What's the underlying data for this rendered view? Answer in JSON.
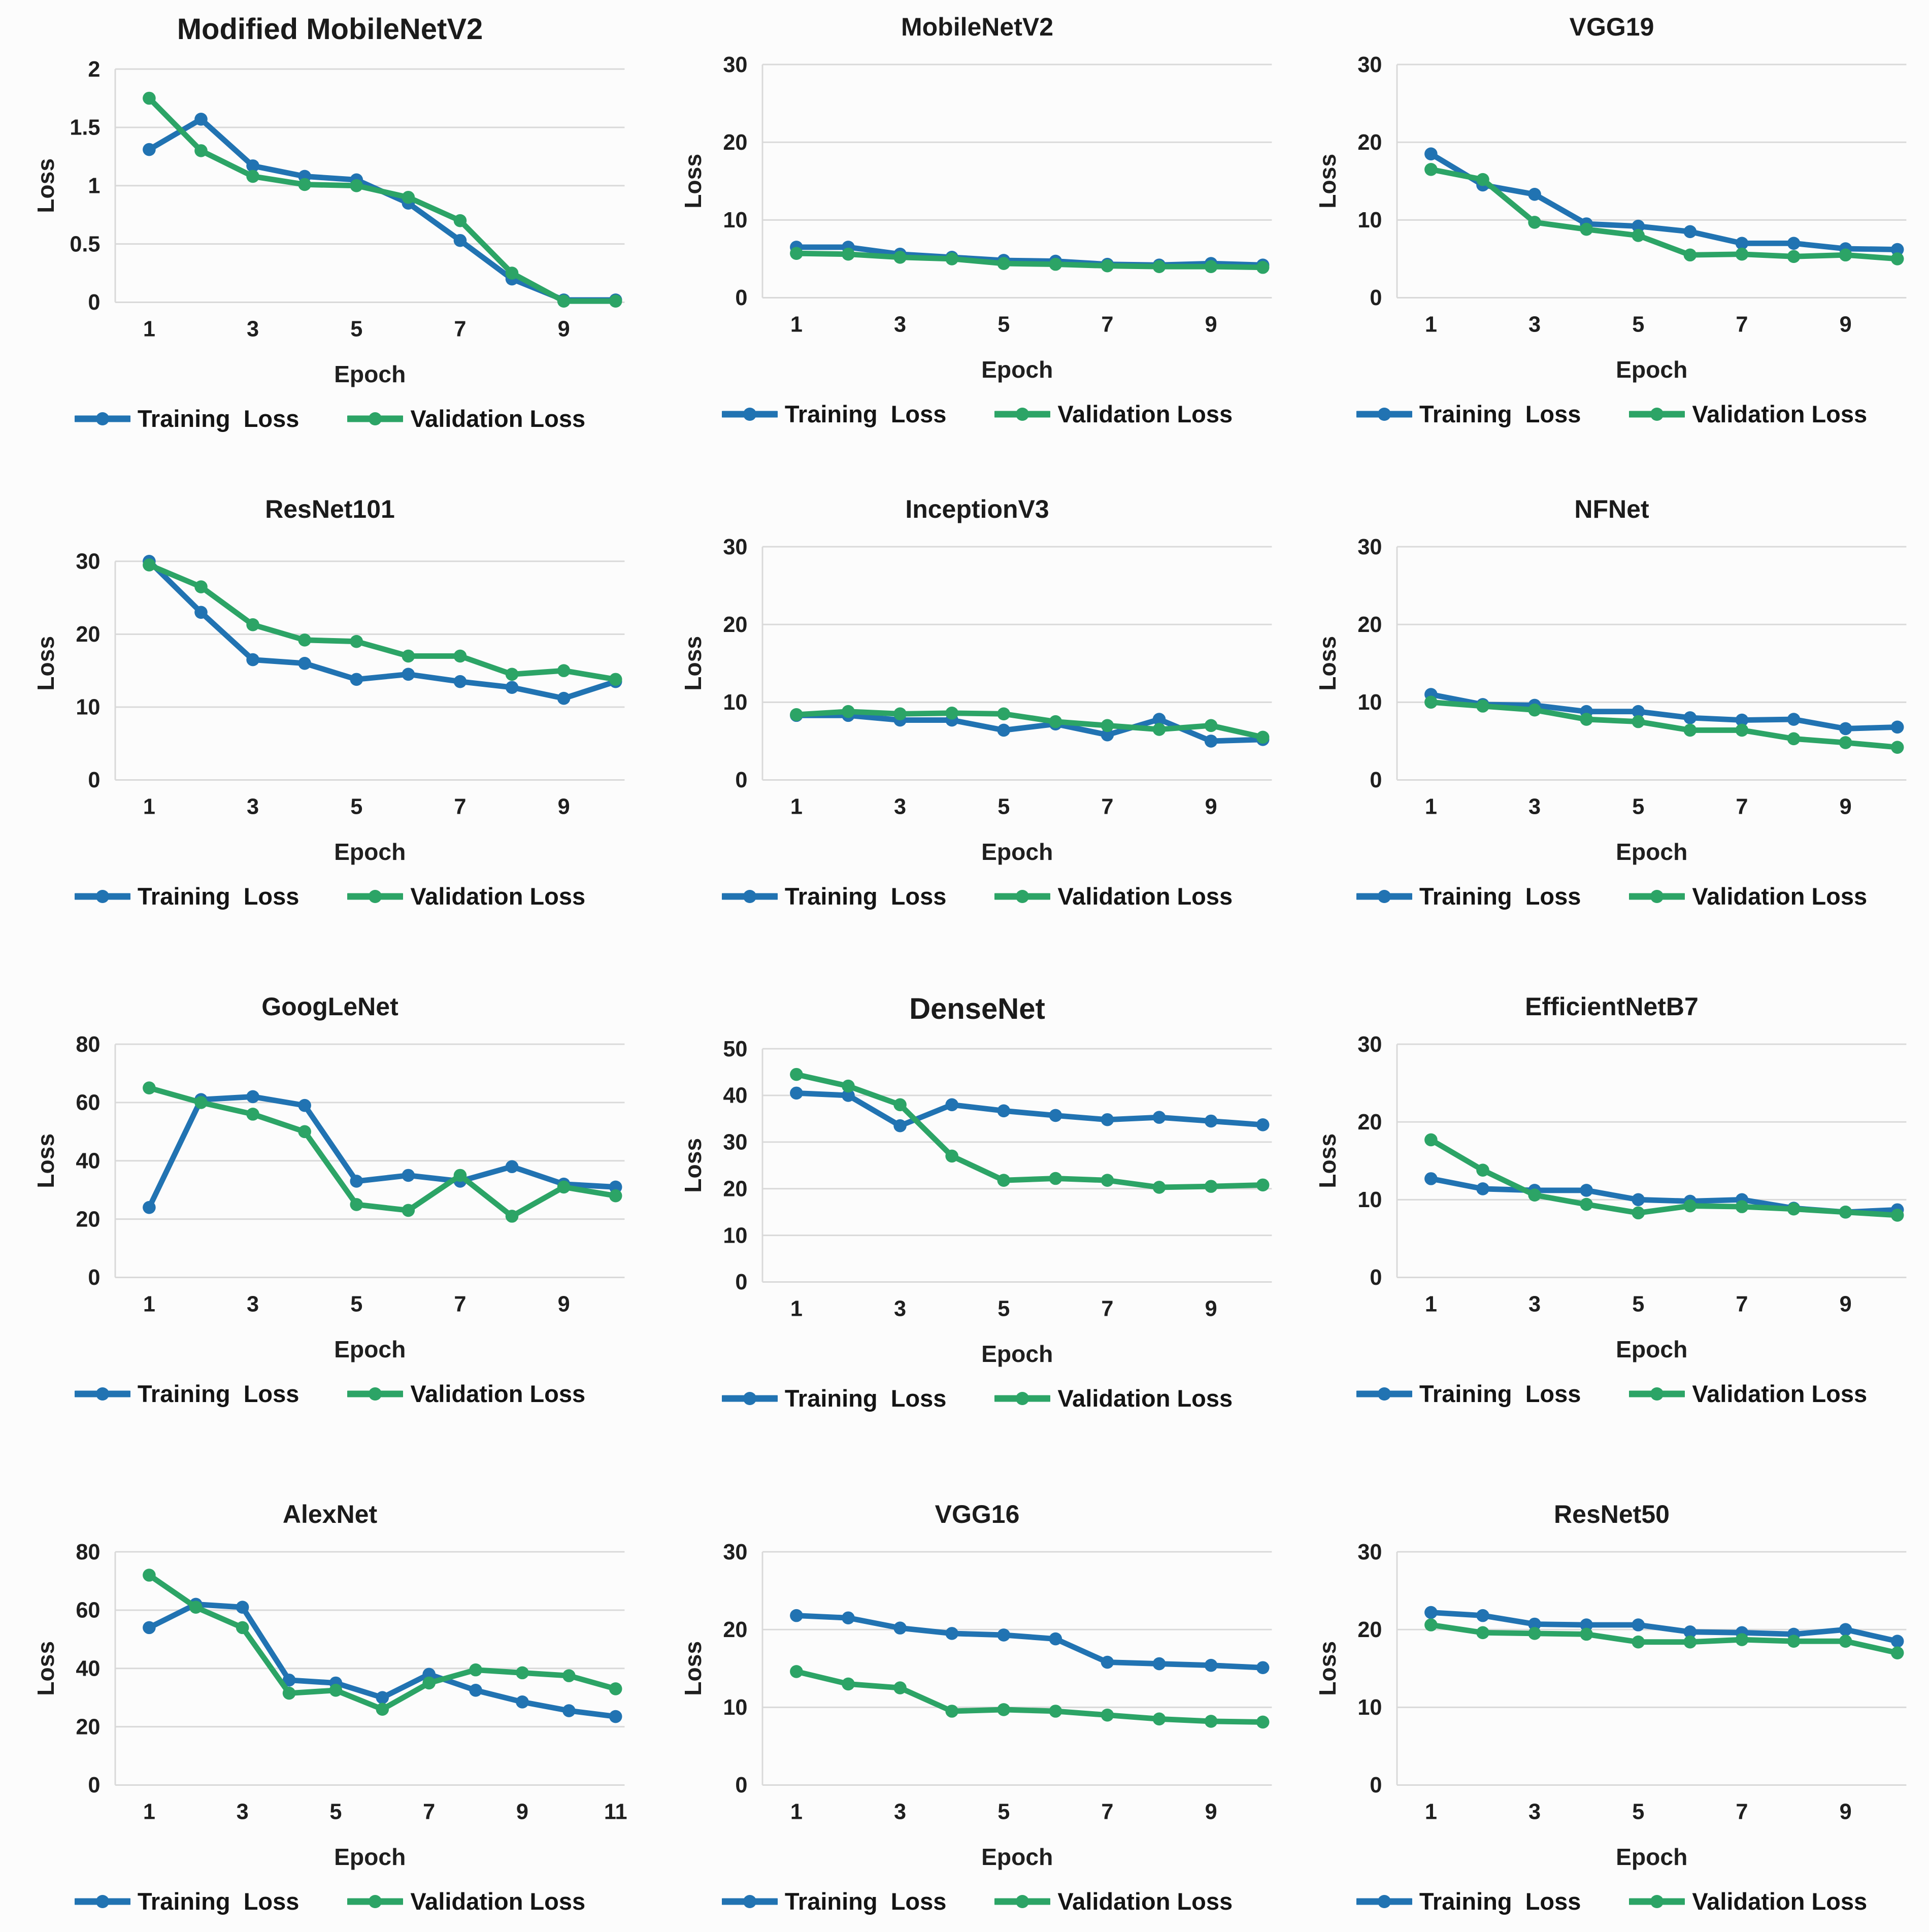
{
  "page": {
    "background": "#fcfcfc"
  },
  "colors": {
    "training": "#2173b2",
    "validation": "#2ca466",
    "grid": "#d9d9d9",
    "text": "#1f1f1f"
  },
  "axis": {
    "x_label": "Epoch",
    "y_label": "Loss"
  },
  "legend": {
    "training_label": "Training  Loss",
    "validation_label": "Validation Loss"
  },
  "chart_data": [
    {
      "type": "line",
      "title": "Modified MobileNetV2",
      "title_emphasis": true,
      "xlabel": "Epoch",
      "ylabel": "Loss",
      "x": [
        1,
        2,
        3,
        4,
        5,
        6,
        7,
        8,
        9,
        10
      ],
      "x_ticks": [
        1,
        3,
        5,
        7,
        9
      ],
      "y_ticks": [
        0,
        0.5,
        1,
        1.5,
        2
      ],
      "ylim": [
        0,
        2
      ],
      "grid": true,
      "legend_position": "bottom",
      "series": [
        {
          "name": "Training  Loss",
          "color_key": "training",
          "values": [
            1.31,
            1.57,
            1.17,
            1.08,
            1.05,
            0.85,
            0.53,
            0.2,
            0.02,
            0.02
          ]
        },
        {
          "name": "Validation Loss",
          "color_key": "validation",
          "values": [
            1.75,
            1.3,
            1.08,
            1.01,
            1.0,
            0.9,
            0.7,
            0.25,
            0.01,
            0.01
          ]
        }
      ]
    },
    {
      "type": "line",
      "title": "MobileNetV2",
      "title_emphasis": false,
      "xlabel": "Epoch",
      "ylabel": "Loss",
      "x": [
        1,
        2,
        3,
        4,
        5,
        6,
        7,
        8,
        9,
        10
      ],
      "x_ticks": [
        1,
        3,
        5,
        7,
        9
      ],
      "y_ticks": [
        0,
        10,
        20,
        30
      ],
      "ylim": [
        0,
        30
      ],
      "grid": true,
      "legend_position": "bottom",
      "series": [
        {
          "name": "Training  Loss",
          "color_key": "training",
          "values": [
            6.5,
            6.5,
            5.6,
            5.2,
            4.8,
            4.7,
            4.3,
            4.2,
            4.4,
            4.2
          ]
        },
        {
          "name": "Validation Loss",
          "color_key": "validation",
          "values": [
            5.7,
            5.6,
            5.2,
            5.0,
            4.4,
            4.3,
            4.1,
            4.0,
            4.0,
            3.9
          ]
        }
      ]
    },
    {
      "type": "line",
      "title": "VGG19",
      "title_emphasis": false,
      "xlabel": "Epoch",
      "ylabel": "Loss",
      "x": [
        1,
        2,
        3,
        4,
        5,
        6,
        7,
        8,
        9,
        10
      ],
      "x_ticks": [
        1,
        3,
        5,
        7,
        9
      ],
      "y_ticks": [
        0,
        10,
        20,
        30
      ],
      "ylim": [
        0,
        30
      ],
      "grid": true,
      "legend_position": "bottom",
      "series": [
        {
          "name": "Training  Loss",
          "color_key": "training",
          "values": [
            18.5,
            14.5,
            13.3,
            9.5,
            9.2,
            8.5,
            7.0,
            7.0,
            6.3,
            6.2
          ]
        },
        {
          "name": "Validation Loss",
          "color_key": "validation",
          "values": [
            16.5,
            15.2,
            9.7,
            8.8,
            8.0,
            5.5,
            5.6,
            5.3,
            5.5,
            5.0
          ]
        }
      ]
    },
    {
      "type": "line",
      "title": "ResNet101",
      "title_emphasis": false,
      "xlabel": "Epoch",
      "ylabel": "Loss",
      "x": [
        1,
        2,
        3,
        4,
        5,
        6,
        7,
        8,
        9,
        10
      ],
      "x_ticks": [
        1,
        3,
        5,
        7,
        9
      ],
      "y_ticks": [
        0,
        10,
        20,
        30
      ],
      "ylim": [
        0,
        32
      ],
      "grid": true,
      "legend_position": "bottom",
      "series": [
        {
          "name": "Training  Loss",
          "color_key": "training",
          "values": [
            30,
            23,
            16.5,
            16,
            13.8,
            14.5,
            13.5,
            12.7,
            11.2,
            13.5
          ]
        },
        {
          "name": "Validation Loss",
          "color_key": "validation",
          "values": [
            29.5,
            26.5,
            21.3,
            19.2,
            19.0,
            17.0,
            17.0,
            14.5,
            15.0,
            13.8
          ]
        }
      ]
    },
    {
      "type": "line",
      "title": "InceptionV3",
      "title_emphasis": false,
      "xlabel": "Epoch",
      "ylabel": "Loss",
      "x": [
        1,
        2,
        3,
        4,
        5,
        6,
        7,
        8,
        9,
        10
      ],
      "x_ticks": [
        1,
        3,
        5,
        7,
        9
      ],
      "y_ticks": [
        0,
        10,
        20,
        30
      ],
      "ylim": [
        0,
        30
      ],
      "grid": true,
      "legend_position": "bottom",
      "series": [
        {
          "name": "Training  Loss",
          "color_key": "training",
          "values": [
            8.3,
            8.3,
            7.7,
            7.7,
            6.4,
            7.2,
            5.8,
            7.8,
            5.0,
            5.2
          ]
        },
        {
          "name": "Validation Loss",
          "color_key": "validation",
          "values": [
            8.4,
            8.8,
            8.5,
            8.6,
            8.5,
            7.5,
            7.0,
            6.5,
            7.0,
            5.5
          ]
        }
      ]
    },
    {
      "type": "line",
      "title": "NFNet",
      "title_emphasis": false,
      "xlabel": "Epoch",
      "ylabel": "Loss",
      "x": [
        1,
        2,
        3,
        4,
        5,
        6,
        7,
        8,
        9,
        10
      ],
      "x_ticks": [
        1,
        3,
        5,
        7,
        9
      ],
      "y_ticks": [
        0,
        10,
        20,
        30
      ],
      "ylim": [
        0,
        30
      ],
      "grid": true,
      "legend_position": "bottom",
      "series": [
        {
          "name": "Training  Loss",
          "color_key": "training",
          "values": [
            11.0,
            9.7,
            9.6,
            8.8,
            8.8,
            8.0,
            7.7,
            7.8,
            6.6,
            6.8
          ]
        },
        {
          "name": "Validation Loss",
          "color_key": "validation",
          "values": [
            10.0,
            9.5,
            9.0,
            7.8,
            7.5,
            6.4,
            6.4,
            5.3,
            4.8,
            4.2
          ]
        }
      ]
    },
    {
      "type": "line",
      "title": "GoogLeNet",
      "title_emphasis": false,
      "xlabel": "Epoch",
      "ylabel": "Loss",
      "x": [
        1,
        2,
        3,
        4,
        5,
        6,
        7,
        8,
        9,
        10
      ],
      "x_ticks": [
        1,
        3,
        5,
        7,
        9
      ],
      "y_ticks": [
        0,
        20,
        40,
        60,
        80
      ],
      "ylim": [
        0,
        80
      ],
      "grid": true,
      "legend_position": "bottom",
      "series": [
        {
          "name": "Training  Loss",
          "color_key": "training",
          "values": [
            24,
            61,
            62,
            59,
            33,
            35,
            33,
            38,
            32,
            31
          ]
        },
        {
          "name": "Validation Loss",
          "color_key": "validation",
          "values": [
            65,
            60,
            56,
            50,
            25,
            23,
            35,
            21,
            31,
            28
          ]
        }
      ]
    },
    {
      "type": "line",
      "title": "DenseNet",
      "title_emphasis": true,
      "xlabel": "Epoch",
      "ylabel": "Loss",
      "x": [
        1,
        2,
        3,
        4,
        5,
        6,
        7,
        8,
        9,
        10
      ],
      "x_ticks": [
        1,
        3,
        5,
        7,
        9
      ],
      "y_ticks": [
        0,
        10,
        20,
        30,
        40,
        50
      ],
      "ylim": [
        0,
        50
      ],
      "grid": true,
      "legend_position": "bottom",
      "series": [
        {
          "name": "Training  Loss",
          "color_key": "training",
          "values": [
            40.5,
            40,
            33.5,
            38,
            36.7,
            35.7,
            34.8,
            35.3,
            34.5,
            33.7
          ]
        },
        {
          "name": "Validation Loss",
          "color_key": "validation",
          "values": [
            44.5,
            42,
            38,
            27,
            21.8,
            22.2,
            21.8,
            20.3,
            20.5,
            20.8
          ]
        }
      ]
    },
    {
      "type": "line",
      "title": "EfficientNetB7",
      "title_emphasis": false,
      "xlabel": "Epoch",
      "ylabel": "Loss",
      "x": [
        1,
        2,
        3,
        4,
        5,
        6,
        7,
        8,
        9,
        10
      ],
      "x_ticks": [
        1,
        3,
        5,
        7,
        9
      ],
      "y_ticks": [
        0,
        10,
        20,
        30
      ],
      "ylim": [
        0,
        30
      ],
      "grid": true,
      "legend_position": "bottom",
      "series": [
        {
          "name": "Training  Loss",
          "color_key": "training",
          "values": [
            12.7,
            11.4,
            11.2,
            11.2,
            10.0,
            9.8,
            10.0,
            8.9,
            8.4,
            8.7
          ]
        },
        {
          "name": "Validation Loss",
          "color_key": "validation",
          "values": [
            17.7,
            13.8,
            10.6,
            9.4,
            8.3,
            9.2,
            9.1,
            8.8,
            8.4,
            8.0
          ]
        }
      ]
    },
    {
      "type": "line",
      "title": "AlexNet",
      "title_emphasis": false,
      "xlabel": "Epoch",
      "ylabel": "Loss",
      "x": [
        1,
        2,
        3,
        4,
        5,
        6,
        7,
        8,
        9,
        10,
        11
      ],
      "x_ticks": [
        1,
        3,
        5,
        7,
        9,
        11
      ],
      "y_ticks": [
        0,
        20,
        40,
        60,
        80
      ],
      "ylim": [
        0,
        80
      ],
      "grid": true,
      "legend_position": "bottom",
      "series": [
        {
          "name": "Training  Loss",
          "color_key": "training",
          "values": [
            54,
            62,
            61,
            36,
            35,
            30,
            38,
            32.5,
            28.5,
            25.5,
            23.5
          ]
        },
        {
          "name": "Validation Loss",
          "color_key": "validation",
          "values": [
            72,
            61,
            54,
            31.5,
            32.5,
            26,
            35,
            39.5,
            38.5,
            37.5,
            33
          ]
        }
      ]
    },
    {
      "type": "line",
      "title": "VGG16",
      "title_emphasis": false,
      "xlabel": "Epoch",
      "ylabel": "Loss",
      "x": [
        1,
        2,
        3,
        4,
        5,
        6,
        7,
        8,
        9,
        10
      ],
      "x_ticks": [
        1,
        3,
        5,
        7,
        9
      ],
      "y_ticks": [
        0,
        10,
        20,
        30
      ],
      "ylim": [
        0,
        30
      ],
      "grid": true,
      "legend_position": "bottom",
      "series": [
        {
          "name": "Training  Loss",
          "color_key": "training",
          "values": [
            21.8,
            21.5,
            20.2,
            19.5,
            19.3,
            18.8,
            15.8,
            15.6,
            15.4,
            15.1
          ]
        },
        {
          "name": "Validation Loss",
          "color_key": "validation",
          "values": [
            14.6,
            13.0,
            12.5,
            9.5,
            9.7,
            9.5,
            9.0,
            8.5,
            8.2,
            8.1
          ]
        }
      ]
    },
    {
      "type": "line",
      "title": "ResNet50",
      "title_emphasis": false,
      "xlabel": "Epoch",
      "ylabel": "Loss",
      "x": [
        1,
        2,
        3,
        4,
        5,
        6,
        7,
        8,
        9,
        10
      ],
      "x_ticks": [
        1,
        3,
        5,
        7,
        9
      ],
      "y_ticks": [
        0,
        10,
        20,
        30
      ],
      "ylim": [
        0,
        30
      ],
      "grid": true,
      "legend_position": "bottom",
      "series": [
        {
          "name": "Training  Loss",
          "color_key": "training",
          "values": [
            22.2,
            21.8,
            20.7,
            20.6,
            20.6,
            19.7,
            19.6,
            19.4,
            20.0,
            18.5
          ]
        },
        {
          "name": "Validation Loss",
          "color_key": "validation",
          "values": [
            20.6,
            19.6,
            19.5,
            19.4,
            18.4,
            18.4,
            18.7,
            18.5,
            18.5,
            17.0
          ]
        }
      ]
    }
  ]
}
